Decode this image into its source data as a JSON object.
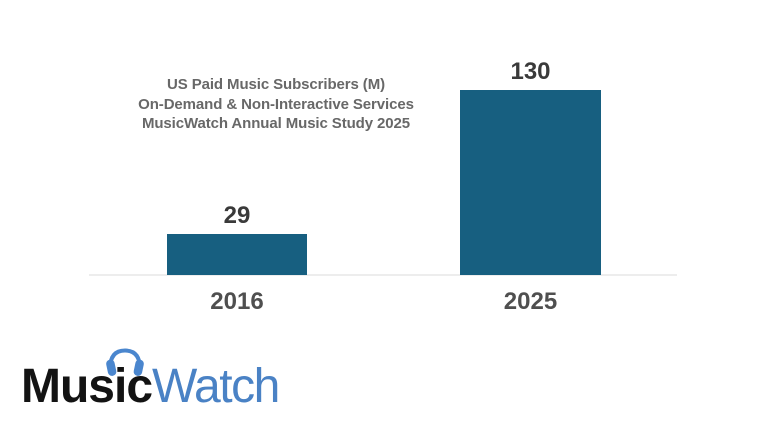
{
  "chart_data": {
    "type": "bar",
    "title_lines": [
      "US Paid Music Subscribers (M)",
      "On-Demand & Non-Interactive Services",
      "MusicWatch Annual Music Study 2025"
    ],
    "categories": [
      "2016",
      "2025"
    ],
    "values": [
      29,
      130
    ],
    "xlabel": "",
    "ylabel": "",
    "ylim": [
      0,
      140
    ],
    "grid": false,
    "legend": false,
    "bar_color": "#175F80",
    "axis_line_color": "#EDEDED",
    "title_color": "#686868",
    "value_label_color": "#3A3A3A",
    "category_label_color": "#4F4F4F"
  },
  "logo": {
    "music": "Music",
    "watch": "Watch",
    "music_color": "#131313",
    "watch_color": "#4A82C5",
    "headphones_color": "#4A86CE",
    "icon": "headphones-icon"
  }
}
